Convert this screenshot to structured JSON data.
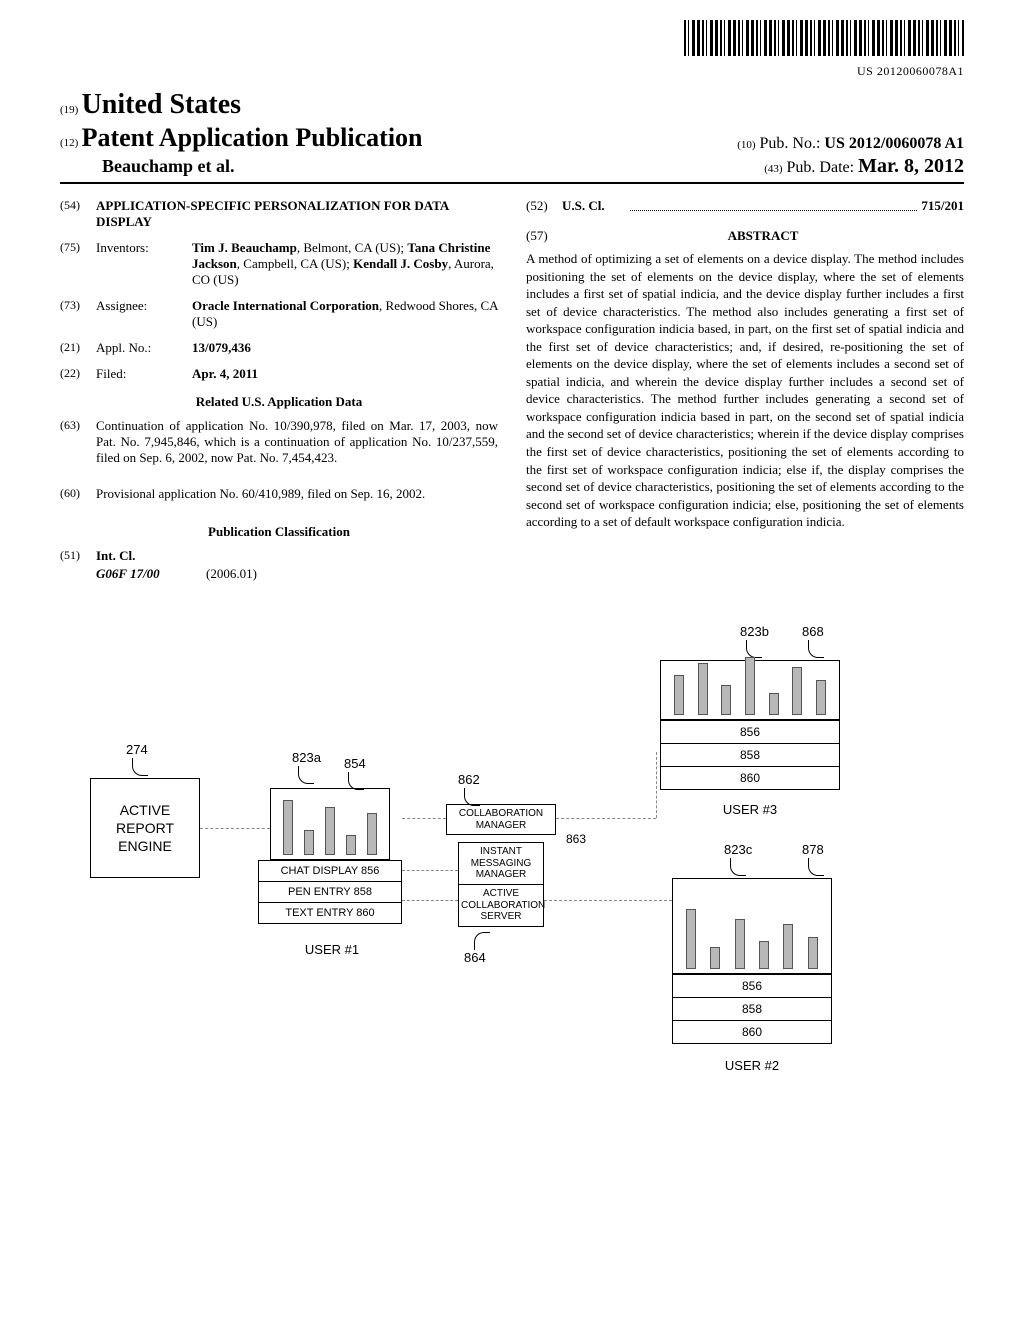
{
  "barcode_caption": "US 20120060078A1",
  "header": {
    "num19": "(19)",
    "country": "United States",
    "num12": "(12)",
    "pub_type": "Patent Application Publication",
    "num10": "(10)",
    "pubno_label": "Pub. No.:",
    "pubno": "US 2012/0060078 A1",
    "author": "Beauchamp et al.",
    "num43": "(43)",
    "pubdate_label": "Pub. Date:",
    "pubdate": "Mar. 8, 2012"
  },
  "left": {
    "f54_num": "(54)",
    "f54_title": "APPLICATION-SPECIFIC PERSONALIZATION FOR DATA DISPLAY",
    "f75_num": "(75)",
    "f75_label": "Inventors:",
    "f75_body": "Tim J. Beauchamp, Belmont, CA (US); Tana Christine Jackson, Campbell, CA (US); Kendall J. Cosby, Aurora, CO (US)",
    "f73_num": "(73)",
    "f73_label": "Assignee:",
    "f73_body": "Oracle International Corporation, Redwood Shores, CA (US)",
    "f21_num": "(21)",
    "f21_label": "Appl. No.:",
    "f21_body": "13/079,436",
    "f22_num": "(22)",
    "f22_label": "Filed:",
    "f22_body": "Apr. 4, 2011",
    "related_head": "Related U.S. Application Data",
    "f63_num": "(63)",
    "f63_body": "Continuation of application No. 10/390,978, filed on Mar. 17, 2003, now Pat. No. 7,945,846, which is a continuation of application No. 10/237,559, filed on Sep. 6, 2002, now Pat. No. 7,454,423.",
    "f60_num": "(60)",
    "f60_body": "Provisional application No. 60/410,989, filed on Sep. 16, 2002.",
    "pubclass_head": "Publication Classification",
    "f51_num": "(51)",
    "f51_label": "Int. Cl.",
    "f51_code": "G06F 17/00",
    "f51_date": "(2006.01)"
  },
  "right": {
    "f52_num": "(52)",
    "f52_label": "U.S. Cl.",
    "f52_code": "715/201",
    "f57_num": "(57)",
    "abstract_head": "ABSTRACT",
    "abstract": "A method of optimizing a set of elements on a device display. The method includes positioning the set of elements on the device display, where the set of elements includes a first set of spatial indicia, and the device display further includes a first set of device characteristics. The method also includes generating a first set of workspace configuration indicia based, in part, on the first set of spatial indicia and the first set of device characteristics; and, if desired, re-positioning the set of elements on the device display, where the set of elements includes a second set of spatial indicia, and wherein the device display further includes a second set of device characteristics. The method further includes generating a second set of workspace configuration indicia based in part, on the second set of spatial indicia and the second set of device characteristics; wherein if the device display comprises the first set of device characteristics, positioning the set of elements according to the first set of workspace configuration indicia; else if, the display comprises the second set of device characteristics, positioning the set of elements according to the second set of workspace configuration indicia; else, positioning the set of elements according to a set of default workspace configuration indicia."
  },
  "figure": {
    "n274": "274",
    "n823a": "823a",
    "n823b": "823b",
    "n823c": "823c",
    "n854": "854",
    "n856": "856",
    "n858": "858",
    "n860": "860",
    "n862": "862",
    "n863": "863",
    "n864": "864",
    "n868": "868",
    "n878": "878",
    "active_report": "ACTIVE REPORT ENGINE",
    "chat": "CHAT DISPLAY  856",
    "pen": "PEN ENTRY 858",
    "text": "TEXT ENTRY 860",
    "user1": "USER #1",
    "user2": "USER #2",
    "user3": "USER #3",
    "collab_mgr": "COLLABORATION MANAGER",
    "im_mgr": "INSTANT MESSAGING MANAGER",
    "acs": "ACTIVE COLLABORATION SERVER",
    "bars_a": [
      55,
      25,
      48,
      20,
      42
    ],
    "bars_b": [
      40,
      52,
      30,
      58,
      22,
      48,
      35
    ],
    "bars_c": [
      60,
      22,
      50,
      28,
      45,
      32
    ]
  }
}
